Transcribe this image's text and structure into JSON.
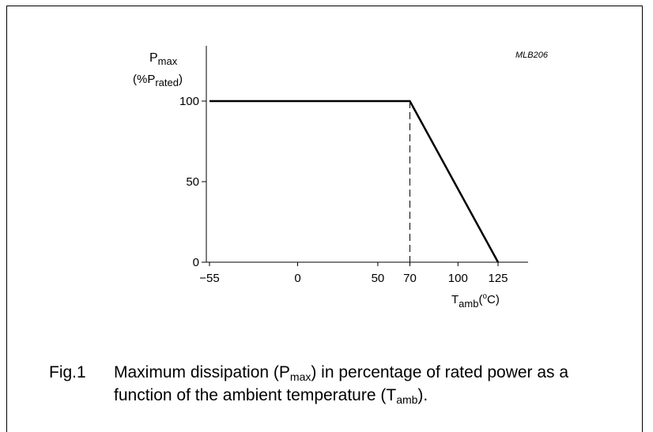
{
  "chart_data": {
    "type": "line",
    "code": "MLB206",
    "ylabel_main": "P",
    "ylabel_sub": "max",
    "ylabel_unit_pre": "(%P",
    "ylabel_unit_sub": "rated",
    "ylabel_unit_post": ")",
    "xlabel_main": "T",
    "xlabel_sub": "amb",
    "xlabel_unit": "(",
    "xlabel_unit_sup": "o",
    "xlabel_unit_post": "C)",
    "xlim": [
      -55,
      125
    ],
    "ylim": [
      0,
      100
    ],
    "xticks": [
      {
        "value": -55,
        "label": "−55"
      },
      {
        "value": 0,
        "label": "0"
      },
      {
        "value": 50,
        "label": "50"
      },
      {
        "value": 70,
        "label": "70"
      },
      {
        "value": 100,
        "label": "100"
      },
      {
        "value": 125,
        "label": "125"
      }
    ],
    "yticks": [
      {
        "value": 0,
        "label": "0"
      },
      {
        "value": 50,
        "label": "50"
      },
      {
        "value": 100,
        "label": "100"
      }
    ],
    "series": [
      {
        "x": [
          -55,
          70,
          125
        ],
        "y": [
          100,
          100,
          0
        ]
      }
    ],
    "reference_lines": [
      {
        "x": 70,
        "y_from": 0,
        "y_to": 100,
        "style": "dashed"
      }
    ]
  },
  "caption": {
    "fig": "Fig.1",
    "t1": "Maximum dissipation (P",
    "t1_sub": "max",
    "t2": ") in percentage of rated power as a function of the ambient temperature (T",
    "t2_sub": "amb",
    "t3": ")."
  }
}
